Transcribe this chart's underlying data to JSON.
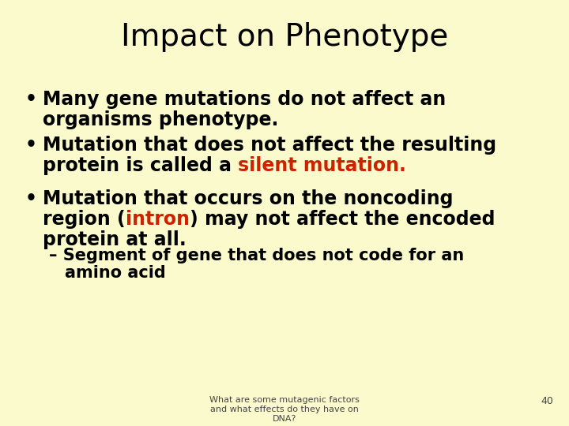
{
  "title": "Impact on Phenotype",
  "title_bg_color": "#F0845A",
  "slide_bg_color": "#FAFACC",
  "content_bg_color": "#FFFFFF",
  "title_font_color": "#000000",
  "body_font_color": "#000000",
  "red_color": "#CC2200",
  "footer_text_line1": "What are some mutagenic factors",
  "footer_text_line2": "and what effects do they have on",
  "footer_text_line3": "DNA?",
  "footer_number": "40",
  "title_fontsize": 28,
  "body_fontsize": 17,
  "sub_fontsize": 15,
  "footer_fontsize": 8
}
